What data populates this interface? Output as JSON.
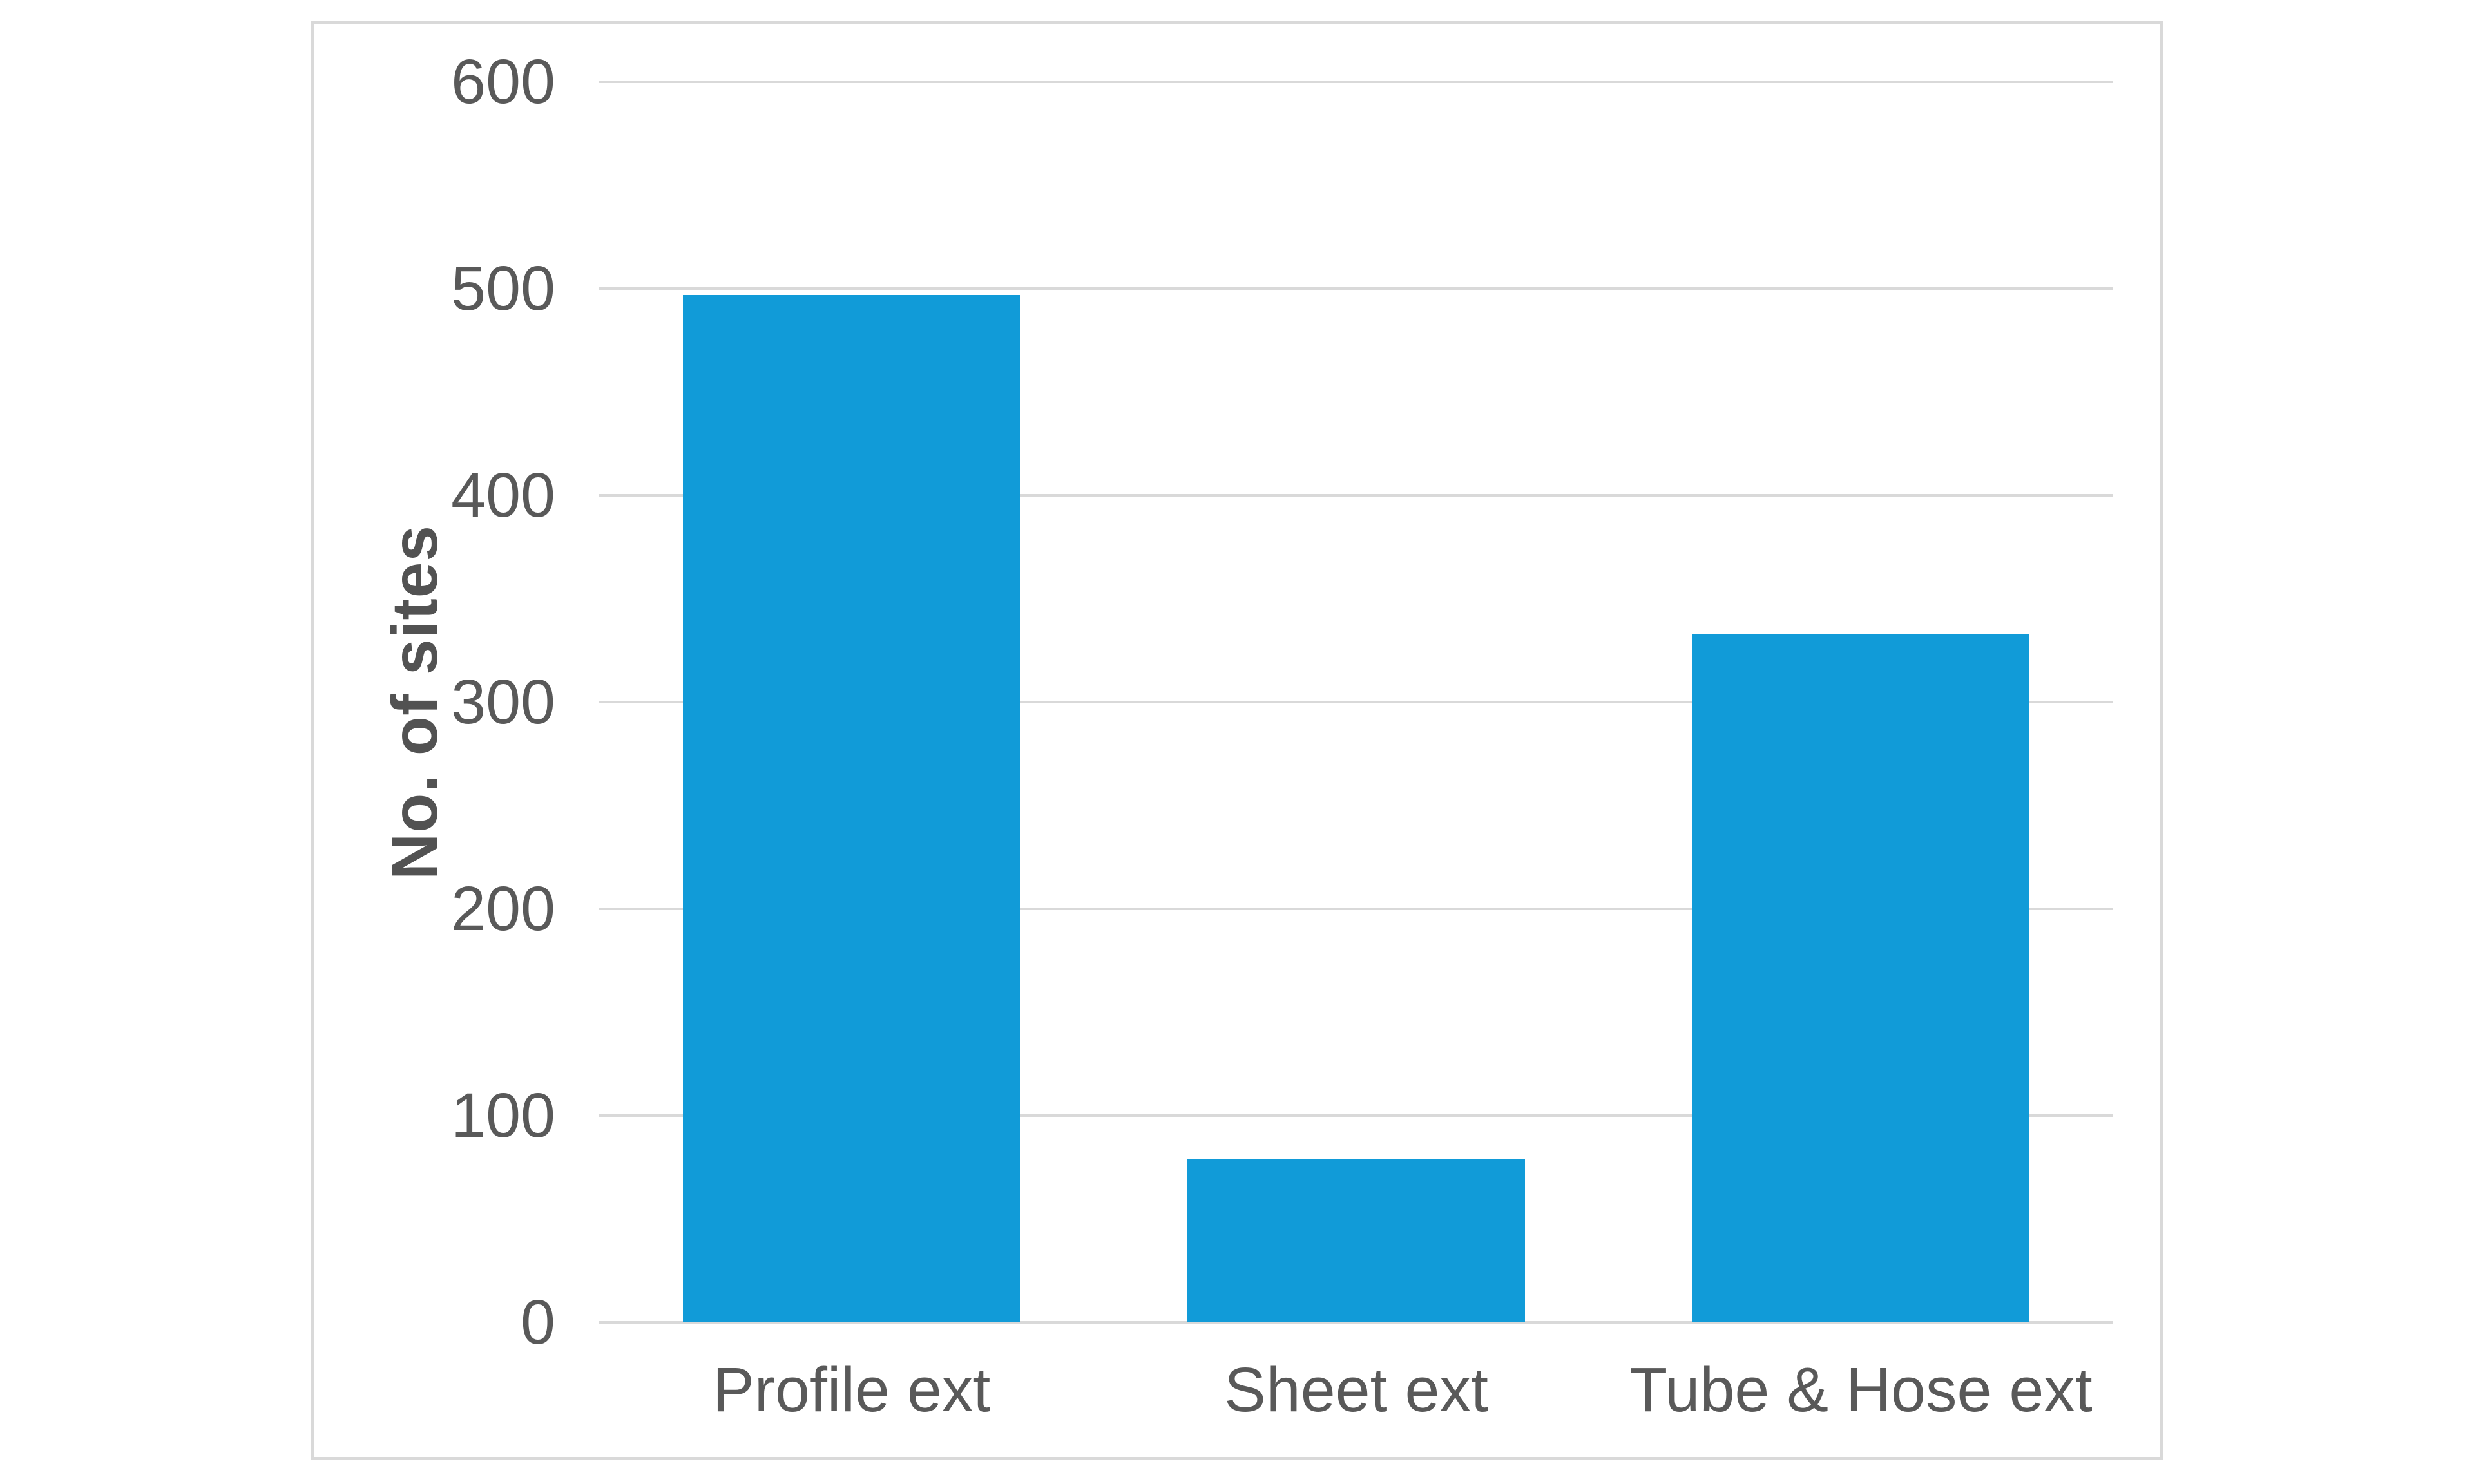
{
  "chart_data": {
    "type": "bar",
    "categories": [
      "Profile ext",
      "Sheet ext",
      "Tube & Hose ext"
    ],
    "values": [
      497,
      79,
      333
    ],
    "title": "",
    "xlabel": "",
    "ylabel": "No. of sites",
    "ylim": [
      0,
      600
    ],
    "yticks": [
      0,
      100,
      200,
      300,
      400,
      500,
      600
    ],
    "grid": true,
    "legend": false,
    "colors": {
      "bar": "#119bd8",
      "gridline": "#d9d9d9",
      "frame_border": "#d9d9d9",
      "tick_text": "#595959",
      "axis_title_text": "#525252",
      "background": "#ffffff"
    }
  }
}
